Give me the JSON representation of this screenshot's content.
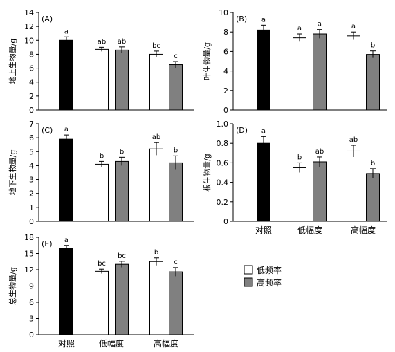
{
  "colors": {
    "control": "#000000",
    "low_freq": "#ffffff",
    "high_freq": "#808080",
    "outline": "#000000"
  },
  "legend": {
    "items": [
      {
        "label": "低频率",
        "color": "#ffffff"
      },
      {
        "label": "高频率",
        "color": "#808080"
      }
    ]
  },
  "categories": [
    "对照",
    "低幅度",
    "高幅度"
  ],
  "chart_data": [
    {
      "type": "bar",
      "panel": "(A)",
      "ylabel": "地上生物量/g",
      "ylim": [
        0,
        14
      ],
      "yticks": [
        0,
        2,
        4,
        6,
        8,
        10,
        12,
        14
      ],
      "series": [
        {
          "values": [
            10.0
          ],
          "errors": [
            0.5
          ],
          "letters": [
            "a"
          ]
        },
        {
          "values": [
            8.7,
            8.0
          ],
          "errors": [
            0.3,
            0.45
          ],
          "letters": [
            "ab",
            "bc"
          ]
        },
        {
          "values": [
            8.6,
            6.5
          ],
          "errors": [
            0.45,
            0.45
          ],
          "letters": [
            "ab",
            "c"
          ]
        }
      ]
    },
    {
      "type": "bar",
      "panel": "(B)",
      "ylabel": "叶生物量/g",
      "ylim": [
        0,
        10
      ],
      "yticks": [
        0,
        2,
        4,
        6,
        8,
        10
      ],
      "series": [
        {
          "values": [
            8.2
          ],
          "errors": [
            0.5
          ],
          "letters": [
            "a"
          ]
        },
        {
          "values": [
            7.4,
            7.6
          ],
          "errors": [
            0.4,
            0.4
          ],
          "letters": [
            "a",
            "a"
          ]
        },
        {
          "values": [
            7.8,
            5.7
          ],
          "errors": [
            0.45,
            0.35
          ],
          "letters": [
            "a",
            "b"
          ]
        }
      ]
    },
    {
      "type": "bar",
      "panel": "(C)",
      "ylabel": "地下生物量/g",
      "ylim": [
        0,
        7
      ],
      "yticks": [
        0,
        1,
        2,
        3,
        4,
        5,
        6,
        7
      ],
      "series": [
        {
          "values": [
            5.9
          ],
          "errors": [
            0.3
          ],
          "letters": [
            "a"
          ]
        },
        {
          "values": [
            4.1,
            5.2
          ],
          "errors": [
            0.2,
            0.45
          ],
          "letters": [
            "b",
            "ab"
          ]
        },
        {
          "values": [
            4.3,
            4.2
          ],
          "errors": [
            0.3,
            0.5
          ],
          "letters": [
            "b",
            "b"
          ]
        }
      ]
    },
    {
      "type": "bar",
      "panel": "(D)",
      "ylabel": "根生物量/g",
      "ylim": [
        0,
        1.0
      ],
      "yticks": [
        0,
        0.2,
        0.4,
        0.6,
        0.8,
        1.0
      ],
      "ytick_labels": [
        "0",
        "0.2",
        "0.4",
        "0.6",
        "0.8",
        "1.0"
      ],
      "series": [
        {
          "values": [
            0.8
          ],
          "errors": [
            0.07
          ],
          "letters": [
            "a"
          ]
        },
        {
          "values": [
            0.55,
            0.72
          ],
          "errors": [
            0.05,
            0.06
          ],
          "letters": [
            "b",
            "ab"
          ]
        },
        {
          "values": [
            0.61,
            0.49
          ],
          "errors": [
            0.05,
            0.05
          ],
          "letters": [
            "ab",
            "b"
          ]
        }
      ]
    },
    {
      "type": "bar",
      "panel": "(E)",
      "ylabel": "总生物量/g",
      "ylim": [
        0,
        18
      ],
      "yticks": [
        0,
        3,
        6,
        9,
        12,
        15,
        18
      ],
      "series": [
        {
          "values": [
            15.9
          ],
          "errors": [
            0.6
          ],
          "letters": [
            "a"
          ]
        },
        {
          "values": [
            11.7,
            13.5
          ],
          "errors": [
            0.4,
            0.7
          ],
          "letters": [
            "bc",
            "b"
          ]
        },
        {
          "values": [
            13.0,
            11.6
          ],
          "errors": [
            0.55,
            0.8
          ],
          "letters": [
            "bc",
            "c"
          ]
        }
      ]
    }
  ]
}
